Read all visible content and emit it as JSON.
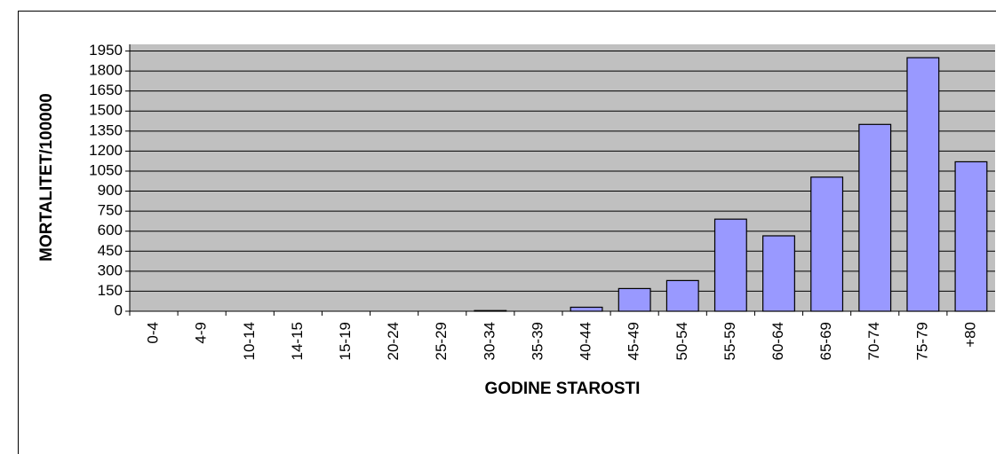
{
  "chart_data": {
    "type": "bar",
    "x_label": "GODINE STAROSTI",
    "y_label": "MORTALITET/100000",
    "categories": [
      "0-4",
      "4-9",
      "10-14",
      "14-15",
      "15-19",
      "20-24",
      "25-29",
      "30-34",
      "35-39",
      "40-44",
      "45-49",
      "50-54",
      "55-59",
      "60-64",
      "65-69",
      "70-74",
      "75-79",
      "+80"
    ],
    "values": [
      0,
      0,
      0,
      0,
      0,
      0,
      0,
      5,
      0,
      30,
      170,
      230,
      690,
      565,
      1005,
      1400,
      1900,
      1120
    ],
    "color": "#9999ff",
    "ylim": [
      0,
      2000
    ],
    "yticks": [
      0,
      150,
      300,
      450,
      600,
      750,
      900,
      1050,
      1200,
      1350,
      1500,
      1650,
      1800,
      1950
    ],
    "grid": true
  }
}
